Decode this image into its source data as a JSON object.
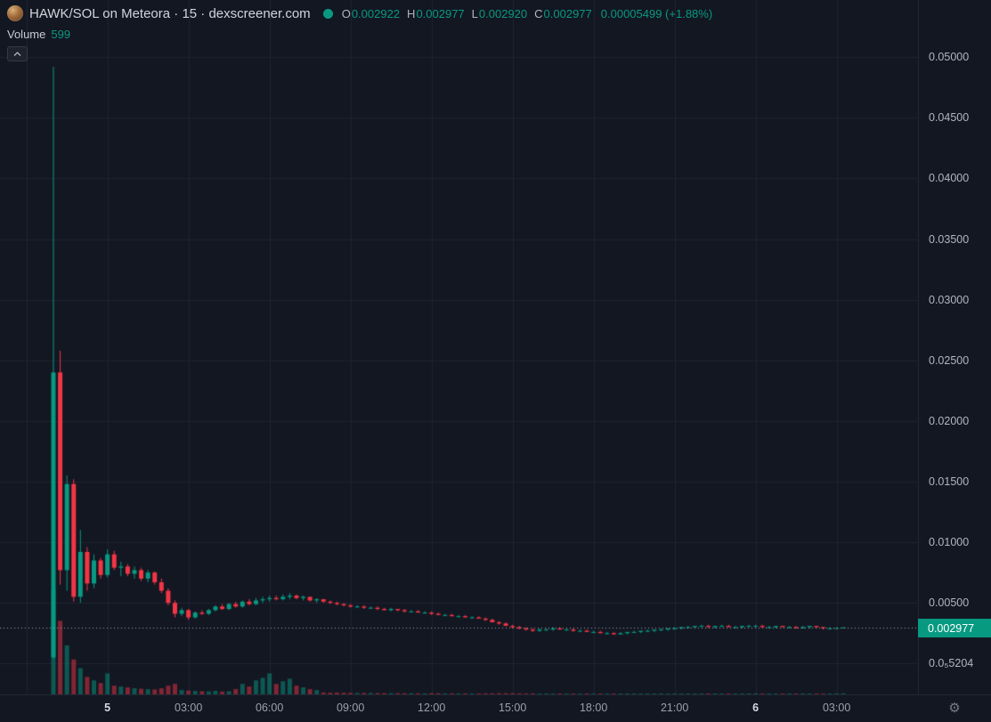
{
  "header": {
    "title": "HAWK/SOL on Meteora · 15 · dexscreener.com",
    "ohlc": {
      "o_label": "O",
      "o": "0.002922",
      "h_label": "H",
      "h": "0.002977",
      "l_label": "L",
      "l": "0.002920",
      "c_label": "C",
      "c": "0.002977",
      "change_text": "0.00005499 (+1.88%)"
    },
    "volume_label": "Volume",
    "volume_value": "599"
  },
  "colors": {
    "background": "#131722",
    "grid": "#1e2430",
    "up": "#089981",
    "down": "#f23645",
    "axis_text": "#b2b5be",
    "price_line": "#9aa0aa",
    "price_tag_bg": "#089981"
  },
  "price_tag": "0.002977",
  "chart_data": {
    "type": "candlestick",
    "title": "HAWK/SOL on Meteora",
    "interval": "15",
    "source": "dexscreener.com",
    "ylim": [
      0,
      0.05
    ],
    "grid": true,
    "price_line": 0.002977,
    "price_line_label": "0.002977",
    "last_candle": {
      "open": 0.002922,
      "high": 0.002977,
      "low": 0.00292,
      "close": 0.002977,
      "volume": 599,
      "change_abs": 5.499e-05,
      "change_pct": 1.88
    },
    "price_axis_values": [
      0.05,
      0.045,
      0.04,
      0.035,
      0.03,
      0.025,
      0.02,
      0.015,
      0.01,
      0.005,
      5.5204e-06
    ],
    "price_axis_labels": [
      "0.05000",
      "0.04500",
      "0.04000",
      "0.03500",
      "0.03000",
      "0.02500",
      "0.02000",
      "0.01500",
      "0.01000",
      "0.00500",
      "0.0₅5204"
    ],
    "time_axis_labels": [
      "5",
      "03:00",
      "06:00",
      "09:00",
      "12:00",
      "15:00",
      "18:00",
      "21:00",
      "6",
      "03:00"
    ],
    "time_axis_strong": [
      true,
      false,
      false,
      false,
      false,
      false,
      false,
      false,
      true,
      false
    ],
    "volume_pane": {
      "max": 60000
    },
    "candles": [
      [
        0.0005,
        0.0492,
        0.0004,
        0.024,
        60000
      ],
      [
        0.024,
        0.0258,
        0.0065,
        0.0077,
        42000
      ],
      [
        0.0077,
        0.0155,
        0.006,
        0.0148,
        28000
      ],
      [
        0.0148,
        0.0152,
        0.0051,
        0.0055,
        20000
      ],
      [
        0.0055,
        0.011,
        0.005,
        0.0092,
        15000
      ],
      [
        0.0092,
        0.0096,
        0.006,
        0.0066,
        10000
      ],
      [
        0.0066,
        0.009,
        0.0062,
        0.0085,
        8000
      ],
      [
        0.0085,
        0.0087,
        0.007,
        0.0073,
        6500
      ],
      [
        0.0073,
        0.0094,
        0.0071,
        0.009,
        12000
      ],
      [
        0.009,
        0.0093,
        0.0077,
        0.0079,
        5000
      ],
      [
        0.0079,
        0.0084,
        0.0072,
        0.008,
        4500
      ],
      [
        0.008,
        0.0082,
        0.0072,
        0.0074,
        4000
      ],
      [
        0.0074,
        0.008,
        0.007,
        0.0077,
        3500
      ],
      [
        0.0077,
        0.0079,
        0.0068,
        0.007,
        3200
      ],
      [
        0.007,
        0.0077,
        0.0067,
        0.0075,
        3000
      ],
      [
        0.0075,
        0.0076,
        0.0065,
        0.0067,
        2800
      ],
      [
        0.0067,
        0.007,
        0.0058,
        0.006,
        3500
      ],
      [
        0.006,
        0.0062,
        0.0048,
        0.005,
        5000
      ],
      [
        0.005,
        0.0052,
        0.0038,
        0.0041,
        6000
      ],
      [
        0.0041,
        0.0046,
        0.0039,
        0.0044,
        2500
      ],
      [
        0.0044,
        0.0045,
        0.0036,
        0.0038,
        2200
      ],
      [
        0.0038,
        0.0043,
        0.0037,
        0.0042,
        2000
      ],
      [
        0.0042,
        0.0044,
        0.004,
        0.0041,
        1800
      ],
      [
        0.0041,
        0.0045,
        0.004,
        0.0044,
        1700
      ],
      [
        0.0044,
        0.0048,
        0.0043,
        0.0047,
        2000
      ],
      [
        0.0047,
        0.0049,
        0.0044,
        0.0045,
        1600
      ],
      [
        0.0045,
        0.005,
        0.0044,
        0.0049,
        1800
      ],
      [
        0.0049,
        0.0051,
        0.0046,
        0.0047,
        3000
      ],
      [
        0.0047,
        0.0052,
        0.0046,
        0.0051,
        6000
      ],
      [
        0.0051,
        0.0053,
        0.0048,
        0.0049,
        4500
      ],
      [
        0.0049,
        0.0054,
        0.0048,
        0.0052,
        8000
      ],
      [
        0.0052,
        0.0055,
        0.005,
        0.0053,
        9500
      ],
      [
        0.0053,
        0.0056,
        0.0051,
        0.0054,
        12000
      ],
      [
        0.0054,
        0.0056,
        0.0052,
        0.0053,
        6000
      ],
      [
        0.0053,
        0.0057,
        0.0052,
        0.0055,
        7500
      ],
      [
        0.0055,
        0.0058,
        0.0053,
        0.0056,
        9000
      ],
      [
        0.0056,
        0.0057,
        0.0053,
        0.0054,
        5000
      ],
      [
        0.0054,
        0.0056,
        0.0052,
        0.0055,
        4000
      ],
      [
        0.0055,
        0.0055,
        0.0051,
        0.0052,
        3000
      ],
      [
        0.0052,
        0.0054,
        0.005,
        0.0053,
        2500
      ],
      [
        0.0053,
        0.0053,
        0.005,
        0.0051,
        1100
      ],
      [
        0.0051,
        0.0052,
        0.0049,
        0.005,
        1000
      ],
      [
        0.005,
        0.0051,
        0.0048,
        0.0049,
        1050
      ],
      [
        0.0049,
        0.005,
        0.0047,
        0.0048,
        950
      ],
      [
        0.0048,
        0.0049,
        0.0046,
        0.0047,
        900
      ],
      [
        0.0047,
        0.0048,
        0.0046,
        0.0047,
        800
      ],
      [
        0.0047,
        0.0048,
        0.0045,
        0.0046,
        850
      ],
      [
        0.0046,
        0.0047,
        0.0045,
        0.0046,
        800
      ],
      [
        0.0046,
        0.0047,
        0.0044,
        0.0045,
        750
      ],
      [
        0.0045,
        0.0046,
        0.0044,
        0.0044,
        700
      ],
      [
        0.0044,
        0.0046,
        0.0043,
        0.0045,
        720
      ],
      [
        0.0045,
        0.0045,
        0.0043,
        0.0044,
        680
      ],
      [
        0.0044,
        0.0045,
        0.0042,
        0.0043,
        650
      ],
      [
        0.0043,
        0.0044,
        0.0042,
        0.0043,
        660
      ],
      [
        0.0043,
        0.0044,
        0.0042,
        0.0042,
        620
      ],
      [
        0.0042,
        0.0043,
        0.0041,
        0.0042,
        600
      ],
      [
        0.0042,
        0.0043,
        0.004,
        0.0041,
        700
      ],
      [
        0.0041,
        0.0042,
        0.004,
        0.004,
        650
      ],
      [
        0.004,
        0.0041,
        0.0039,
        0.004,
        600
      ],
      [
        0.004,
        0.0041,
        0.0039,
        0.0039,
        580
      ],
      [
        0.0039,
        0.004,
        0.0038,
        0.0039,
        560
      ],
      [
        0.0039,
        0.004,
        0.0038,
        0.0038,
        540
      ],
      [
        0.0038,
        0.0039,
        0.0037,
        0.0038,
        550
      ],
      [
        0.0038,
        0.0039,
        0.0037,
        0.0037,
        520
      ],
      [
        0.0037,
        0.0038,
        0.0035,
        0.0036,
        600
      ],
      [
        0.0036,
        0.0037,
        0.0034,
        0.0034,
        650
      ],
      [
        0.0034,
        0.0035,
        0.0032,
        0.0033,
        700
      ],
      [
        0.0033,
        0.0034,
        0.0031,
        0.0031,
        680
      ],
      [
        0.0031,
        0.0032,
        0.0029,
        0.003,
        720
      ],
      [
        0.003,
        0.0031,
        0.0028,
        0.0029,
        600
      ],
      [
        0.0029,
        0.003,
        0.0027,
        0.0028,
        550
      ],
      [
        0.0028,
        0.0029,
        0.0026,
        0.0027,
        580
      ],
      [
        0.0027,
        0.0029,
        0.0026,
        0.0028,
        500
      ],
      [
        0.0028,
        0.0029,
        0.0027,
        0.0028,
        450
      ],
      [
        0.0028,
        0.003,
        0.0027,
        0.0029,
        480
      ],
      [
        0.0029,
        0.003,
        0.0028,
        0.0028,
        420
      ],
      [
        0.0028,
        0.0029,
        0.0027,
        0.0028,
        440
      ],
      [
        0.0028,
        0.0029,
        0.0026,
        0.0027,
        400
      ],
      [
        0.0027,
        0.0028,
        0.0026,
        0.0027,
        380
      ],
      [
        0.0027,
        0.0028,
        0.0026,
        0.0026,
        360
      ],
      [
        0.0026,
        0.0027,
        0.0025,
        0.0026,
        400
      ],
      [
        0.0026,
        0.0027,
        0.0025,
        0.0025,
        380
      ],
      [
        0.0025,
        0.0026,
        0.0024,
        0.0025,
        390
      ],
      [
        0.0025,
        0.0026,
        0.0024,
        0.0024,
        350
      ],
      [
        0.0024,
        0.0026,
        0.0024,
        0.0025,
        360
      ],
      [
        0.0025,
        0.0026,
        0.0024,
        0.0026,
        380
      ],
      [
        0.0026,
        0.0027,
        0.0025,
        0.0026,
        350
      ],
      [
        0.0026,
        0.0027,
        0.0025,
        0.0027,
        370
      ],
      [
        0.0027,
        0.0028,
        0.0026,
        0.0027,
        400
      ],
      [
        0.0027,
        0.0028,
        0.0026,
        0.0028,
        420
      ],
      [
        0.0028,
        0.0029,
        0.0027,
        0.0028,
        380
      ],
      [
        0.0028,
        0.0029,
        0.0027,
        0.0029,
        430
      ],
      [
        0.0029,
        0.003,
        0.0028,
        0.0029,
        390
      ],
      [
        0.0029,
        0.003,
        0.0028,
        0.003,
        440
      ],
      [
        0.003,
        0.0031,
        0.0029,
        0.003,
        400
      ],
      [
        0.003,
        0.0031,
        0.0029,
        0.0031,
        450
      ],
      [
        0.0031,
        0.0032,
        0.003,
        0.0031,
        420
      ],
      [
        0.0031,
        0.0032,
        0.003,
        0.003,
        380
      ],
      [
        0.003,
        0.0031,
        0.0029,
        0.0031,
        400
      ],
      [
        0.0031,
        0.0032,
        0.003,
        0.0031,
        370
      ],
      [
        0.0031,
        0.0032,
        0.003,
        0.003,
        350
      ],
      [
        0.003,
        0.0031,
        0.0029,
        0.003,
        360
      ],
      [
        0.003,
        0.0031,
        0.0029,
        0.0031,
        380
      ],
      [
        0.0031,
        0.0032,
        0.003,
        0.0031,
        350
      ],
      [
        0.0031,
        0.0032,
        0.003,
        0.0031,
        340
      ],
      [
        0.0031,
        0.0032,
        0.003,
        0.003,
        320
      ],
      [
        0.003,
        0.0031,
        0.0029,
        0.003,
        330
      ],
      [
        0.003,
        0.0031,
        0.0029,
        0.0031,
        350
      ],
      [
        0.0031,
        0.0031,
        0.003,
        0.003,
        310
      ],
      [
        0.003,
        0.0031,
        0.0029,
        0.003,
        300
      ],
      [
        0.003,
        0.0031,
        0.0029,
        0.0029,
        310
      ],
      [
        0.0029,
        0.0031,
        0.0029,
        0.003,
        320
      ],
      [
        0.003,
        0.0031,
        0.0029,
        0.0031,
        330
      ],
      [
        0.0031,
        0.0031,
        0.0029,
        0.003,
        300
      ],
      [
        0.003,
        0.003,
        0.0028,
        0.0029,
        290
      ],
      [
        0.0029,
        0.003,
        0.0028,
        0.0029,
        280
      ],
      [
        0.00292,
        0.00298,
        0.0029,
        0.00292,
        270
      ],
      [
        0.002922,
        0.002977,
        0.00292,
        0.002977,
        599
      ]
    ]
  }
}
